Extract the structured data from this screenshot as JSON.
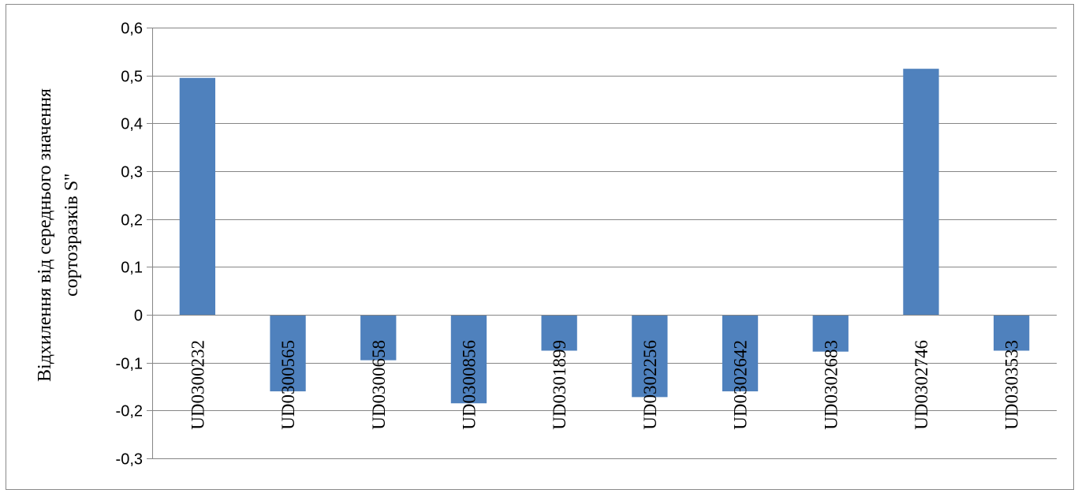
{
  "chart_data": {
    "type": "bar",
    "title": "",
    "xlabel": "",
    "ylabel": [
      "Відхилення від середнього значення",
      "сортозразків  S''"
    ],
    "categories": [
      "UD0300232",
      "UD0300565",
      "UD0300658",
      "UD0300856",
      "UD0301899",
      "UD0302256",
      "UD0302642",
      "UD0302683",
      "UD0302746",
      "UD0303533"
    ],
    "series": [
      {
        "values": [
          0.495,
          -0.16,
          -0.095,
          -0.185,
          -0.075,
          -0.172,
          -0.16,
          -0.077,
          0.514,
          -0.075
        ]
      }
    ],
    "ylim": [
      -0.3,
      0.6
    ],
    "yticks": [
      0.6,
      0.5,
      0.4,
      0.3,
      0.2,
      0.1,
      0,
      -0.1,
      -0.2,
      -0.3
    ],
    "ytick_labels": [
      "0,6",
      "0,5",
      "0,4",
      "0,3",
      "0,2",
      "0,1",
      "0",
      "-0,1",
      "-0,2",
      "-0,3"
    ],
    "grid": true,
    "bar_color": "#4f81bd",
    "gridline_color": "#868686"
  }
}
